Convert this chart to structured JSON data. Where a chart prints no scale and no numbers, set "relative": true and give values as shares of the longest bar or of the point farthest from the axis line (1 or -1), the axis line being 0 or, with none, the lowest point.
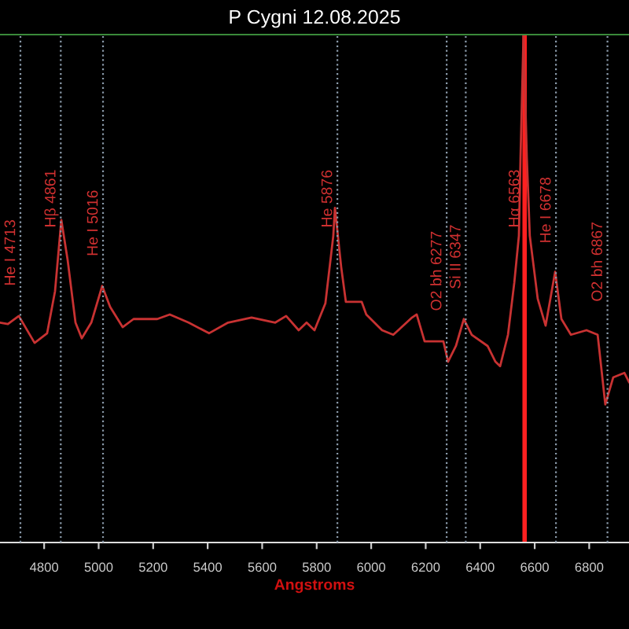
{
  "chart_data": {
    "type": "line",
    "title": "P Cygni 12.08.2025",
    "xlabel": "Angstroms",
    "relative": true,
    "x": [
      4638,
      4667,
      4707,
      4765,
      4811,
      4840,
      4863,
      4886,
      4915,
      4938,
      4973,
      5013,
      5042,
      5088,
      5128,
      5215,
      5261,
      5330,
      5405,
      5475,
      5561,
      5648,
      5688,
      5734,
      5763,
      5792,
      5832,
      5861,
      5867,
      5890,
      5907,
      5965,
      5982,
      6040,
      6081,
      6150,
      6167,
      6196,
      6265,
      6282,
      6311,
      6340,
      6369,
      6427,
      6456,
      6473,
      6502,
      6525,
      6542,
      6548,
      6559,
      6571,
      6582,
      6611,
      6640,
      6675,
      6698,
      6733,
      6790,
      6831,
      6859,
      6888,
      6929,
      6946
    ],
    "series": [
      {
        "color": "#c83232",
        "values": [
          0.433,
          0.43,
          0.446,
          0.393,
          0.412,
          0.495,
          0.635,
          0.557,
          0.433,
          0.402,
          0.433,
          0.505,
          0.464,
          0.424,
          0.44,
          0.44,
          0.449,
          0.433,
          0.412,
          0.433,
          0.443,
          0.433,
          0.446,
          0.418,
          0.433,
          0.418,
          0.471,
          0.604,
          0.659,
          0.542,
          0.474,
          0.474,
          0.449,
          0.418,
          0.409,
          0.443,
          0.449,
          0.396,
          0.396,
          0.356,
          0.387,
          0.44,
          0.409,
          0.387,
          0.356,
          0.347,
          0.409,
          0.511,
          0.604,
          0.759,
          1.0,
          0.759,
          0.604,
          0.48,
          0.427,
          0.533,
          0.44,
          0.409,
          0.418,
          0.409,
          0.272,
          0.325,
          0.334,
          0.316
        ]
      }
    ],
    "xlim": [
      4638,
      6946
    ],
    "xticks": [
      4800,
      5000,
      5200,
      5400,
      5600,
      5800,
      6000,
      6200,
      6400,
      6600,
      6800
    ],
    "grid": false,
    "legend": false,
    "tick_labels": "x",
    "line_style": "solid",
    "marker": "none",
    "ref_lines": [
      {
        "axis": "x",
        "value": 4713,
        "label": "He I 4713",
        "color": "#8a9aaa",
        "line_style": "dotted"
      },
      {
        "axis": "x",
        "value": 4861,
        "label": "Hβ 4861",
        "color": "#8a9aaa",
        "line_style": "dotted"
      },
      {
        "axis": "x",
        "value": 5016,
        "label": "He I 5016",
        "color": "#8a9aaa",
        "line_style": "dotted"
      },
      {
        "axis": "x",
        "value": 5876,
        "label": "He 5876",
        "color": "#8a9aaa",
        "line_style": "dotted"
      },
      {
        "axis": "x",
        "value": 6277,
        "label": "O2 bh 6277",
        "color": "#8a9aaa",
        "line_style": "dotted"
      },
      {
        "axis": "x",
        "value": 6347,
        "label": "Si II 6347",
        "color": "#8a9aaa",
        "line_style": "dotted"
      },
      {
        "axis": "x",
        "value": 6563,
        "label": "Hα 6563",
        "color": "#ff2020",
        "line_style": "solid"
      },
      {
        "axis": "x",
        "value": 6678,
        "label": "He I 6678",
        "color": "#8a9aaa",
        "line_style": "dotted"
      },
      {
        "axis": "x",
        "value": 6867,
        "label": "O2 bh 6867",
        "color": "#8a9aaa",
        "line_style": "dotted"
      }
    ]
  }
}
